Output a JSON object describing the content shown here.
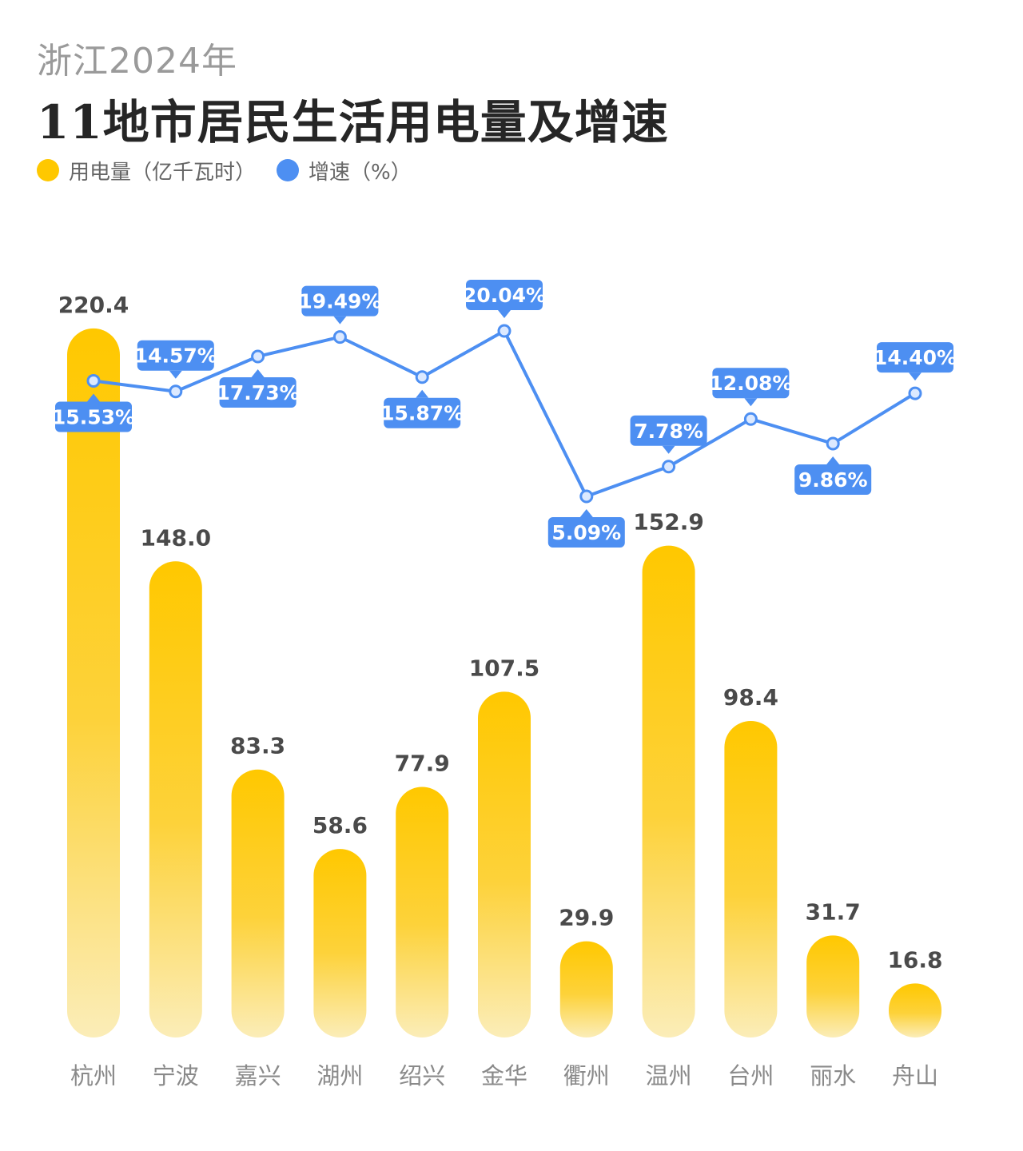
{
  "header": {
    "subtitle": "浙江2024年",
    "title": "11地市居民生活用电量及增速"
  },
  "chart_data": {
    "type": "bar",
    "title": "11地市居民生活用电量及增速",
    "subtitle": "浙江2024年",
    "categories": [
      "杭州",
      "宁波",
      "嘉兴",
      "湖州",
      "绍兴",
      "金华",
      "衢州",
      "温州",
      "台州",
      "丽水",
      "舟山"
    ],
    "series": [
      {
        "name": "用电量（亿千瓦时）",
        "type": "bar",
        "color": "#FFC800",
        "values": [
          220.4,
          148.0,
          83.3,
          58.6,
          77.9,
          107.5,
          29.9,
          152.9,
          98.4,
          31.7,
          16.8
        ],
        "labels": [
          "220.4",
          "148.0",
          "83.3",
          "58.6",
          "77.9",
          "107.5",
          "29.9",
          "152.9",
          "98.4",
          "31.7",
          "16.8"
        ]
      },
      {
        "name": "增速（%）",
        "type": "line",
        "color": "#4D8FF2",
        "values": [
          15.53,
          14.57,
          17.73,
          19.49,
          15.87,
          20.04,
          5.09,
          7.78,
          12.08,
          9.86,
          14.4
        ],
        "labels": [
          "15.53%",
          "14.57%",
          "17.73%",
          "19.49%",
          "15.87%",
          "20.04%",
          "5.09%",
          "7.78%",
          "12.08%",
          "9.86%",
          "14.40%"
        ],
        "label_position": [
          "below",
          "above",
          "below",
          "above",
          "below",
          "above",
          "below",
          "above",
          "above",
          "below",
          "above"
        ]
      }
    ],
    "legend": "top-left",
    "grid": false
  }
}
